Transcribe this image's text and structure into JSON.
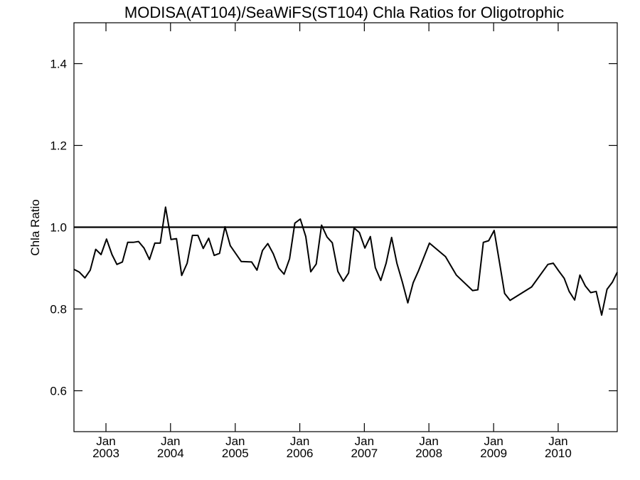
{
  "chart_data": {
    "type": "line",
    "title": "MODISA(AT104)/SeaWiFS(ST104)  Chla Ratios for Oligotrophic",
    "xlabel": "",
    "ylabel": "Chla Ratio",
    "xlim": [
      "2002-07-04",
      "2010-12-01"
    ],
    "ylim": [
      0.5,
      1.5
    ],
    "y_ticks": [
      0.6,
      0.8,
      1.0,
      1.2,
      1.4
    ],
    "y_tick_labels": [
      "0.6",
      "0.8",
      "1.0",
      "1.2",
      "1.4"
    ],
    "x_ticks": [
      {
        "date": "2003-01-01",
        "month": "Jan",
        "year": "2003"
      },
      {
        "date": "2004-01-01",
        "month": "Jan",
        "year": "2004"
      },
      {
        "date": "2005-01-01",
        "month": "Jan",
        "year": "2005"
      },
      {
        "date": "2006-01-01",
        "month": "Jan",
        "year": "2006"
      },
      {
        "date": "2007-01-01",
        "month": "Jan",
        "year": "2007"
      },
      {
        "date": "2008-01-01",
        "month": "Jan",
        "year": "2008"
      },
      {
        "date": "2009-01-01",
        "month": "Jan",
        "year": "2009"
      },
      {
        "date": "2010-01-01",
        "month": "Jan",
        "year": "2010"
      }
    ],
    "reference_line": 1.0,
    "grid": false,
    "series": [
      {
        "x": [
          "2002-07-04",
          "2002-08-04",
          "2002-09-04",
          "2002-10-04",
          "2002-11-04",
          "2002-12-04",
          "2003-01-04",
          "2003-02-04",
          "2003-03-04",
          "2003-04-04",
          "2003-05-04",
          "2003-06-04",
          "2003-07-04",
          "2003-08-04",
          "2003-09-04",
          "2003-10-04",
          "2003-11-04",
          "2003-12-04",
          "2004-01-04",
          "2004-02-04",
          "2004-03-04",
          "2004-04-04",
          "2004-05-04",
          "2004-06-04",
          "2004-07-04",
          "2004-08-04",
          "2004-09-04",
          "2004-10-04",
          "2004-11-04",
          "2004-12-04",
          "2005-02-04",
          "2005-04-04",
          "2005-05-04",
          "2005-06-04",
          "2005-07-04",
          "2005-08-04",
          "2005-09-04",
          "2005-10-04",
          "2005-11-04",
          "2005-12-04",
          "2006-01-04",
          "2006-02-04",
          "2006-03-04",
          "2006-04-04",
          "2006-05-04",
          "2006-06-04",
          "2006-07-04",
          "2006-08-04",
          "2006-09-04",
          "2006-10-04",
          "2006-11-04",
          "2006-12-04",
          "2007-01-04",
          "2007-02-04",
          "2007-03-04",
          "2007-04-04",
          "2007-05-04",
          "2007-06-04",
          "2007-07-04",
          "2007-08-04",
          "2007-09-04",
          "2007-10-04",
          "2007-11-04",
          "2008-01-04",
          "2008-04-04",
          "2008-06-04",
          "2008-09-04",
          "2008-10-04",
          "2008-11-04",
          "2008-12-04",
          "2009-01-04",
          "2009-02-04",
          "2009-03-04",
          "2009-04-04",
          "2009-08-04",
          "2009-11-04",
          "2009-12-04",
          "2010-01-04",
          "2010-02-04",
          "2010-03-04",
          "2010-04-04",
          "2010-05-04",
          "2010-06-04",
          "2010-07-04",
          "2010-08-04",
          "2010-09-04",
          "2010-10-04",
          "2010-11-04",
          "2010-12-01"
        ],
        "y": [
          0.897,
          0.89,
          0.876,
          0.895,
          0.946,
          0.933,
          0.971,
          0.933,
          0.909,
          0.915,
          0.963,
          0.963,
          0.965,
          0.949,
          0.921,
          0.961,
          0.961,
          1.049,
          0.97,
          0.972,
          0.882,
          0.912,
          0.98,
          0.98,
          0.948,
          0.973,
          0.931,
          0.936,
          1.001,
          0.955,
          0.916,
          0.915,
          0.895,
          0.943,
          0.96,
          0.935,
          0.9,
          0.885,
          0.923,
          1.01,
          1.02,
          0.977,
          0.891,
          0.91,
          1.005,
          0.976,
          0.962,
          0.892,
          0.868,
          0.888,
          0.998,
          0.987,
          0.949,
          0.977,
          0.901,
          0.87,
          0.912,
          0.975,
          0.912,
          0.866,
          0.815,
          0.864,
          0.894,
          0.961,
          0.928,
          0.883,
          0.845,
          0.847,
          0.963,
          0.967,
          0.992,
          0.912,
          0.838,
          0.821,
          0.854,
          0.909,
          0.912,
          0.893,
          0.875,
          0.843,
          0.822,
          0.883,
          0.856,
          0.84,
          0.843,
          0.785,
          0.848,
          0.866,
          0.89
        ]
      }
    ]
  }
}
